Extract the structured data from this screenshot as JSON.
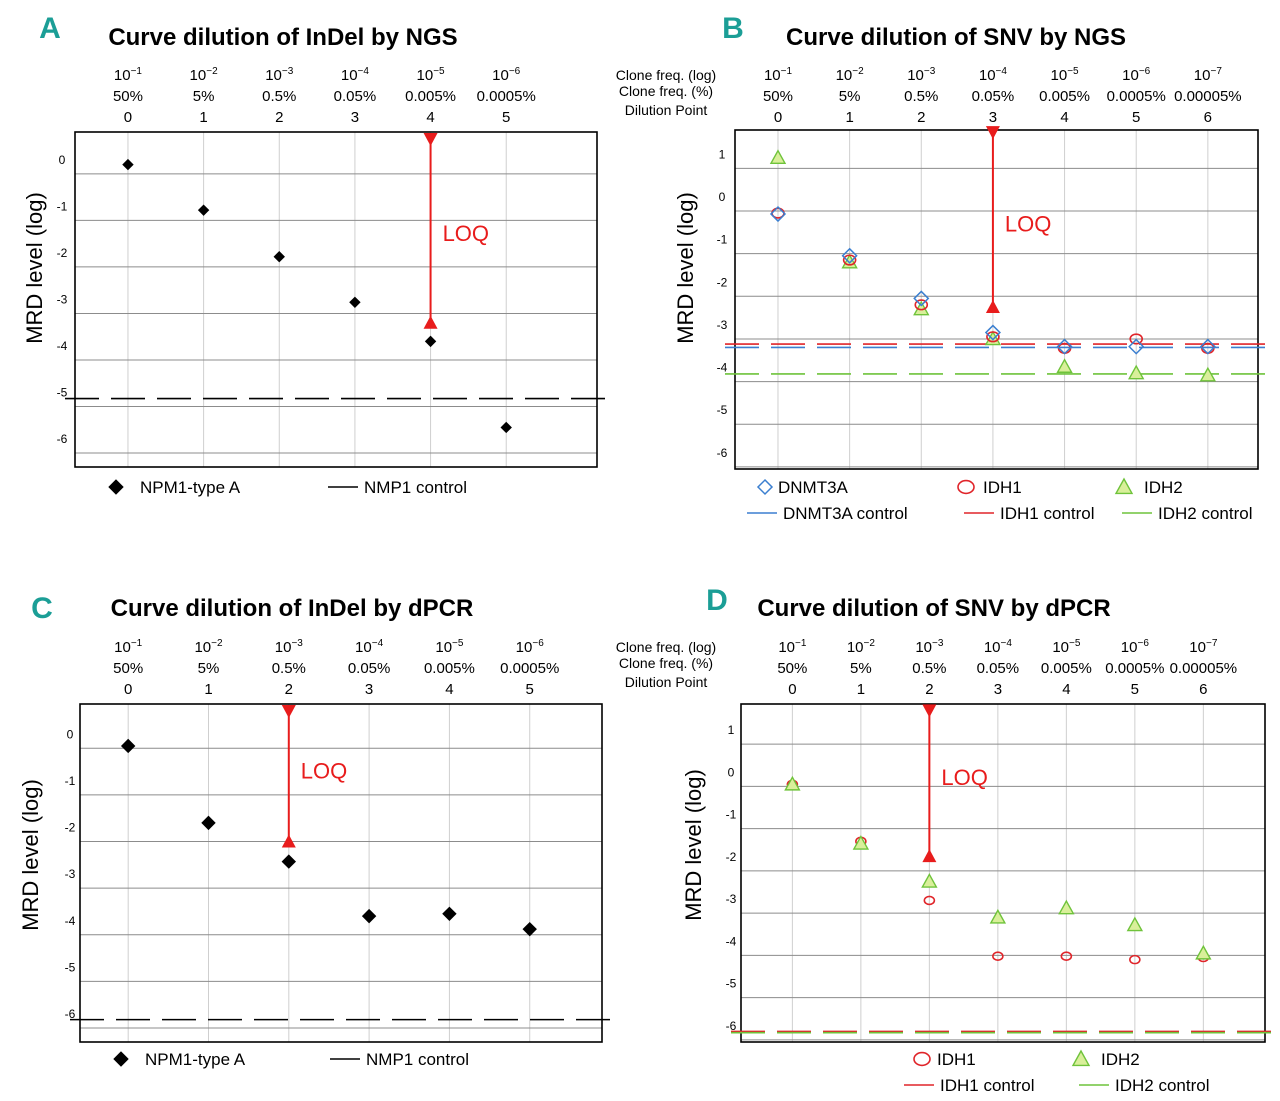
{
  "figure": {
    "header_labels": {
      "clone_freq_log": "Clone freq. (log)",
      "clone_freq_pct": "Clone freq. (%)",
      "dilution_point": "Dilution Point"
    },
    "loq_label": "LOQ",
    "colors": {
      "nmp1": "#000000",
      "dnmt3a": "#3b7fd0",
      "idh1": "#e0252a",
      "idh2": "#6fc33b",
      "idh2_fill": "#d9ef9a",
      "loq": "#e81c1c",
      "panel_letter": "#1b9e96",
      "grid": "#8c8c8c",
      "frame": "#000000"
    }
  },
  "chart_data": [
    {
      "panel": "A",
      "type": "scatter",
      "title": "Curve dilution of InDel by NGS",
      "ylabel": "MRD level (log)",
      "ylim": [
        -6.3,
        0.9
      ],
      "yticks": [
        0,
        -1,
        -2,
        -3,
        -4,
        -5,
        -6
      ],
      "xlim": [
        -0.7,
        6.2
      ],
      "dilution_points": [
        "0",
        "1",
        "2",
        "3",
        "4",
        "5"
      ],
      "clone_freq_log": [
        "10^-1",
        "10^-2",
        "10^-3",
        "10^-4",
        "10^-5",
        "10^-6"
      ],
      "clone_freq_pct": [
        "50%",
        "5%",
        "0.5%",
        "0.05%",
        "0.005%",
        "0.0005%"
      ],
      "show_row_labels": false,
      "series": [
        {
          "name": "NPM1-type A",
          "marker": "diamond",
          "color": "#000000",
          "size": 5,
          "x": [
            0,
            1,
            2,
            3,
            4,
            5
          ],
          "y": [
            0.2,
            -0.78,
            -1.78,
            -2.76,
            -3.6,
            -5.45
          ]
        }
      ],
      "controls": [
        {
          "name": "NMP1 control",
          "color": "#000000",
          "y": -4.83
        }
      ],
      "loq": {
        "x": 4,
        "top": 0.75,
        "bottom": -3.2
      },
      "legend": [
        {
          "name": "NPM1-type A",
          "symbol": "diamond",
          "color": "#000000",
          "col": 0,
          "row": 0
        },
        {
          "name": "NMP1 control",
          "symbol": "line",
          "color": "#000000",
          "col": 1,
          "row": 0
        }
      ]
    },
    {
      "panel": "B",
      "type": "scatter",
      "title": "Curve dilution of  SNV by NGS",
      "ylabel": "MRD level (log)",
      "ylim": [
        -6.05,
        1.9
      ],
      "yticks": [
        1,
        0,
        -1,
        -2,
        -3,
        -4,
        -5,
        -6
      ],
      "xlim": [
        -0.6,
        6.7
      ],
      "dilution_points": [
        "0",
        "1",
        "2",
        "3",
        "4",
        "5",
        "6"
      ],
      "clone_freq_log": [
        "10^-1",
        "10^-2",
        "10^-3",
        "10^-4",
        "10^-5",
        "10^-6",
        "10^-7"
      ],
      "clone_freq_pct": [
        "50%",
        "5%",
        "0.5%",
        "0.05%",
        "0.005%",
        "0.0005%",
        "0.00005%"
      ],
      "show_row_labels": true,
      "series": [
        {
          "name": "IDH2",
          "marker": "triangle",
          "color": "#6fc33b",
          "fill": "#d9ef9a",
          "size": 7,
          "x": [
            0,
            1,
            2,
            3,
            4,
            5,
            6
          ],
          "y": [
            1.25,
            -1.2,
            -2.3,
            -3.0,
            -3.65,
            -3.8,
            -3.85
          ]
        },
        {
          "name": "IDH1",
          "marker": "circle",
          "color": "#e0252a",
          "size": 6,
          "x": [
            0,
            1,
            2,
            3,
            4,
            5,
            6
          ],
          "y": [
            -0.05,
            -1.15,
            -2.2,
            -2.95,
            -3.22,
            -3.0,
            -3.22
          ]
        },
        {
          "name": "DNMT3A",
          "marker": "diamond",
          "color": "#3b7fd0",
          "hollow": true,
          "size": 7,
          "x": [
            0,
            1,
            2,
            3,
            4,
            5,
            6
          ],
          "y": [
            -0.07,
            -1.05,
            -2.05,
            -2.85,
            -3.18,
            -3.18,
            -3.18
          ]
        }
      ],
      "controls": [
        {
          "name": "IDH1 control",
          "color": "#e0252a",
          "y": -3.12
        },
        {
          "name": "DNMT3A control",
          "color": "#3b7fd0",
          "y": -3.2
        },
        {
          "name": "IDH2 control",
          "color": "#6fc33b",
          "y": -3.82
        }
      ],
      "loq": {
        "x": 3,
        "top": 1.85,
        "bottom": -2.25
      },
      "legend": [
        {
          "name": "DNMT3A",
          "symbol": "diamond",
          "color": "#3b7fd0",
          "col": 0,
          "row": 0
        },
        {
          "name": "IDH1",
          "symbol": "circle",
          "color": "#e0252a",
          "col": 1,
          "row": 0
        },
        {
          "name": "IDH2",
          "symbol": "triangle",
          "color": "#6fc33b",
          "col": 2,
          "row": 0
        },
        {
          "name": "DNMT3A control",
          "symbol": "line",
          "color": "#3b7fd0",
          "col": 0,
          "row": 1
        },
        {
          "name": "IDH1 control",
          "symbol": "line",
          "color": "#e0252a",
          "col": 1,
          "row": 1
        },
        {
          "name": "IDH2 control",
          "symbol": "line",
          "color": "#6fc33b",
          "col": 2,
          "row": 1
        }
      ]
    },
    {
      "panel": "C",
      "type": "scatter",
      "title": "Curve dilution of InDel  by dPCR",
      "ylabel": "MRD level (log)",
      "ylim": [
        -6.3,
        0.95
      ],
      "yticks": [
        0,
        -1,
        -2,
        -3,
        -4,
        -5,
        -6
      ],
      "xlim": [
        -0.6,
        5.9
      ],
      "dilution_points": [
        "0",
        "1",
        "2",
        "3",
        "4",
        "5"
      ],
      "clone_freq_log": [
        "10^-1",
        "10^-2",
        "10^-3",
        "10^-4",
        "10^-5",
        "10^-6"
      ],
      "clone_freq_pct": [
        "50%",
        "5%",
        "0.5%",
        "0.05%",
        "0.005%",
        "0.0005%"
      ],
      "show_row_labels": false,
      "series": [
        {
          "name": "NPM1-type A",
          "marker": "diamond",
          "color": "#000000",
          "size": 6.5,
          "x": [
            0,
            1,
            2,
            3,
            4,
            5
          ],
          "y": [
            0.05,
            -1.6,
            -2.43,
            -3.6,
            -3.55,
            -3.88
          ]
        }
      ],
      "controls": [
        {
          "name": "NMP1 control",
          "color": "#000000",
          "y": -5.82
        }
      ],
      "loq": {
        "x": 2,
        "top": 0.8,
        "bottom": -2.0
      },
      "legend": [
        {
          "name": "NPM1-type A",
          "symbol": "diamond",
          "color": "#000000",
          "col": 0,
          "row": 0
        },
        {
          "name": "NMP1 control",
          "symbol": "line",
          "color": "#000000",
          "col": 1,
          "row": 0
        }
      ]
    },
    {
      "panel": "D",
      "type": "scatter",
      "title": "Curve dilution of SNV by dPCR",
      "ylabel": "MRD level (log)",
      "ylim": [
        -6.05,
        1.95
      ],
      "yticks": [
        1,
        0,
        -1,
        -2,
        -3,
        -4,
        -5,
        -6
      ],
      "xlim": [
        -0.75,
        6.9
      ],
      "dilution_points": [
        "0",
        "1",
        "2",
        "3",
        "4",
        "5",
        "6"
      ],
      "clone_freq_log": [
        "10^-1",
        "10^-2",
        "10^-3",
        "10^-4",
        "10^-5",
        "10^-6",
        "10^-7"
      ],
      "clone_freq_pct": [
        "50%",
        "5%",
        "0.5%",
        "0.05%",
        "0.005%",
        "0.0005%",
        "0.00005%"
      ],
      "show_row_labels": true,
      "series": [
        {
          "name": "IDH1",
          "marker": "circle",
          "color": "#e0252a",
          "size": 5,
          "x": [
            0,
            1,
            2,
            3,
            4,
            5,
            6
          ],
          "y": [
            0.05,
            -1.3,
            -2.7,
            -4.02,
            -4.02,
            -4.1,
            -4.05
          ]
        },
        {
          "name": "IDH2",
          "marker": "triangle",
          "color": "#6fc33b",
          "fill": "#d9ef9a",
          "size": 7,
          "x": [
            0,
            1,
            2,
            3,
            4,
            5,
            6
          ],
          "y": [
            0.05,
            -1.35,
            -2.25,
            -3.1,
            -2.88,
            -3.28,
            -3.95
          ]
        }
      ],
      "controls": [
        {
          "name": "IDH1 control",
          "color": "#e0252a",
          "y": -5.8
        },
        {
          "name": "IDH2 control",
          "color": "#6fc33b",
          "y": -5.83
        }
      ],
      "loq": {
        "x": 2,
        "top": 1.8,
        "bottom": -1.65
      },
      "legend": [
        {
          "name": "IDH1",
          "symbol": "circle",
          "color": "#e0252a",
          "col": 0,
          "row": 0
        },
        {
          "name": "IDH2",
          "symbol": "triangle",
          "color": "#6fc33b",
          "col": 1,
          "row": 0
        },
        {
          "name": "IDH1 control",
          "symbol": "line",
          "color": "#e0252a",
          "col": 0,
          "row": 1
        },
        {
          "name": "IDH2 control",
          "symbol": "line",
          "color": "#6fc33b",
          "col": 1,
          "row": 1
        }
      ]
    }
  ]
}
